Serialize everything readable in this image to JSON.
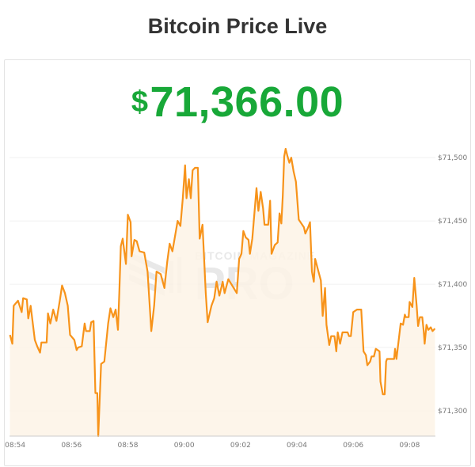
{
  "header": {
    "title": "Bitcoin Price Live"
  },
  "price": {
    "currency_symbol": "$",
    "value": "71,366.00",
    "color": "#18a838"
  },
  "watermark": {
    "line1": "BITCOIN MAGAZINE",
    "line2": "PRO"
  },
  "chart_data": {
    "type": "area",
    "title": "",
    "xlabel": "",
    "ylabel": "",
    "line_color": "#f7931a",
    "fill_color": "#fdf3e6",
    "grid": true,
    "y_axis_position": "right",
    "ylim": [
      71280,
      71512
    ],
    "xlim": [
      "08:53:48",
      "09:08:55"
    ],
    "x_ticks": [
      "08:54",
      "08:56",
      "08:58",
      "09:00",
      "09:02",
      "09:04",
      "09:06",
      "09:08"
    ],
    "y_ticks": [
      {
        "value": 71300,
        "label": "$71,300"
      },
      {
        "value": 71350,
        "label": "$71,350"
      },
      {
        "value": 71400,
        "label": "$71,400"
      },
      {
        "value": 71450,
        "label": "$71,450"
      },
      {
        "value": 71500,
        "label": "$71,500"
      }
    ],
    "times": [
      "08:53:49",
      "08:53:54",
      "08:53:57",
      "08:54:06",
      "08:54:14",
      "08:54:17",
      "08:54:25",
      "08:54:28",
      "08:54:33",
      "08:54:42",
      "08:54:47",
      "08:54:53",
      "08:54:56",
      "08:55:07",
      "08:55:10",
      "08:55:15",
      "08:55:21",
      "08:55:28",
      "08:55:35",
      "08:55:40",
      "08:55:46",
      "08:55:52",
      "08:55:57",
      "08:56:06",
      "08:56:11",
      "08:56:14",
      "08:56:22",
      "08:56:28",
      "08:56:31",
      "08:56:39",
      "08:56:42",
      "08:56:47",
      "08:56:51",
      "08:56:55",
      "08:56:57",
      "08:57:03",
      "08:57:10",
      "08:57:18",
      "08:57:23",
      "08:57:29",
      "08:57:34",
      "08:57:39",
      "08:57:42",
      "08:57:45",
      "08:57:49",
      "08:57:56",
      "08:58:00",
      "08:58:06",
      "08:58:08",
      "08:58:14",
      "08:58:19",
      "08:58:25",
      "08:58:35",
      "08:58:42",
      "08:58:50",
      "08:58:56",
      "08:59:01",
      "08:59:10",
      "08:59:18",
      "08:59:24",
      "08:59:29",
      "08:59:35",
      "08:59:46",
      "08:59:52",
      "08:59:57",
      "09:00:02",
      "09:00:05",
      "09:00:10",
      "09:00:14",
      "09:00:18",
      "09:00:23",
      "09:00:29",
      "09:00:33",
      "09:00:39",
      "09:00:46",
      "09:00:50",
      "09:00:58",
      "09:01:04",
      "09:01:09",
      "09:01:15",
      "09:01:22",
      "09:01:26",
      "09:01:34",
      "09:01:52",
      "09:01:57",
      "09:02:02",
      "09:02:06",
      "09:02:11",
      "09:02:17",
      "09:02:20",
      "09:02:25",
      "09:02:34",
      "09:02:38",
      "09:02:43",
      "09:02:48",
      "09:02:51",
      "09:02:59",
      "09:03:03",
      "09:03:06",
      "09:03:13",
      "09:03:19",
      "09:03:23",
      "09:03:27",
      "09:03:30",
      "09:03:33",
      "09:03:36",
      "09:03:40",
      "09:03:44",
      "09:03:48",
      "09:03:53",
      "09:03:58",
      "09:04:04",
      "09:04:15",
      "09:04:18",
      "09:04:24",
      "09:04:28",
      "09:04:32",
      "09:04:36",
      "09:04:39",
      "09:04:46",
      "09:04:51",
      "09:04:55",
      "09:05:00",
      "09:05:03",
      "09:05:09",
      "09:05:13",
      "09:05:20",
      "09:05:24",
      "09:05:27",
      "09:05:32",
      "09:05:37",
      "09:05:48",
      "09:05:51",
      "09:05:55",
      "09:06:00",
      "09:06:08",
      "09:06:17",
      "09:06:22",
      "09:06:27",
      "09:06:30",
      "09:06:36",
      "09:06:39",
      "09:06:44",
      "09:06:48",
      "09:06:56",
      "09:06:58",
      "09:07:03",
      "09:07:07",
      "09:07:10",
      "09:07:12",
      "09:07:27",
      "09:07:29",
      "09:07:32",
      "09:07:41",
      "09:07:46",
      "09:07:50",
      "09:07:52",
      "09:07:58",
      "09:08:00",
      "09:08:06",
      "09:08:10",
      "09:08:15",
      "09:08:18",
      "09:08:22",
      "09:08:27",
      "09:08:30",
      "09:08:32",
      "09:08:36",
      "09:08:40",
      "09:08:45",
      "09:08:49",
      "09:08:54"
    ],
    "prices": [
      71360,
      71353,
      71383,
      71387,
      71378,
      71389,
      71388,
      71373,
      71383,
      71356,
      71351,
      71346,
      71354,
      71354,
      71377,
      71369,
      71380,
      71371,
      71387,
      71399,
      71393,
      71383,
      71360,
      71356,
      71348,
      71350,
      71351,
      71369,
      71363,
      71363,
      71370,
      71371,
      71314,
      71314,
      71280,
      71337,
      71339,
      71369,
      71381,
      71374,
      71380,
      71364,
      71395,
      71430,
      71436,
      71416,
      71455,
      71449,
      71422,
      71435,
      71434,
      71426,
      71425,
      71410,
      71363,
      71383,
      71410,
      71408,
      71397,
      71418,
      71432,
      71426,
      71450,
      71446,
      71468,
      71494,
      71468,
      71483,
      71468,
      71490,
      71492,
      71492,
      71436,
      71447,
      71393,
      71370,
      71383,
      71389,
      71402,
      71391,
      71402,
      71393,
      71404,
      71393,
      71420,
      71424,
      71442,
      71437,
      71435,
      71424,
      71436,
      71476,
      71458,
      71473,
      71460,
      71447,
      71447,
      71466,
      71424,
      71431,
      71433,
      71456,
      71448,
      71470,
      71501,
      71507,
      71501,
      71496,
      71500,
      71489,
      71481,
      71451,
      71445,
      71440,
      71445,
      71449,
      71410,
      71402,
      71420,
      71410,
      71403,
      71375,
      71397,
      71368,
      71352,
      71359,
      71359,
      71347,
      71362,
      71353,
      71362,
      71362,
      71359,
      71359,
      71378,
      71380,
      71380,
      71347,
      71344,
      71336,
      71339,
      71343,
      71343,
      71349,
      71347,
      71323,
      71313,
      71313,
      71339,
      71341,
      71341,
      71349,
      71341,
      71369,
      71368,
      71376,
      71374,
      71374,
      71386,
      71382,
      71405,
      71383,
      71367,
      71374,
      71374,
      71363,
      71353,
      71368,
      71364,
      71366,
      71363,
      71365
    ]
  }
}
